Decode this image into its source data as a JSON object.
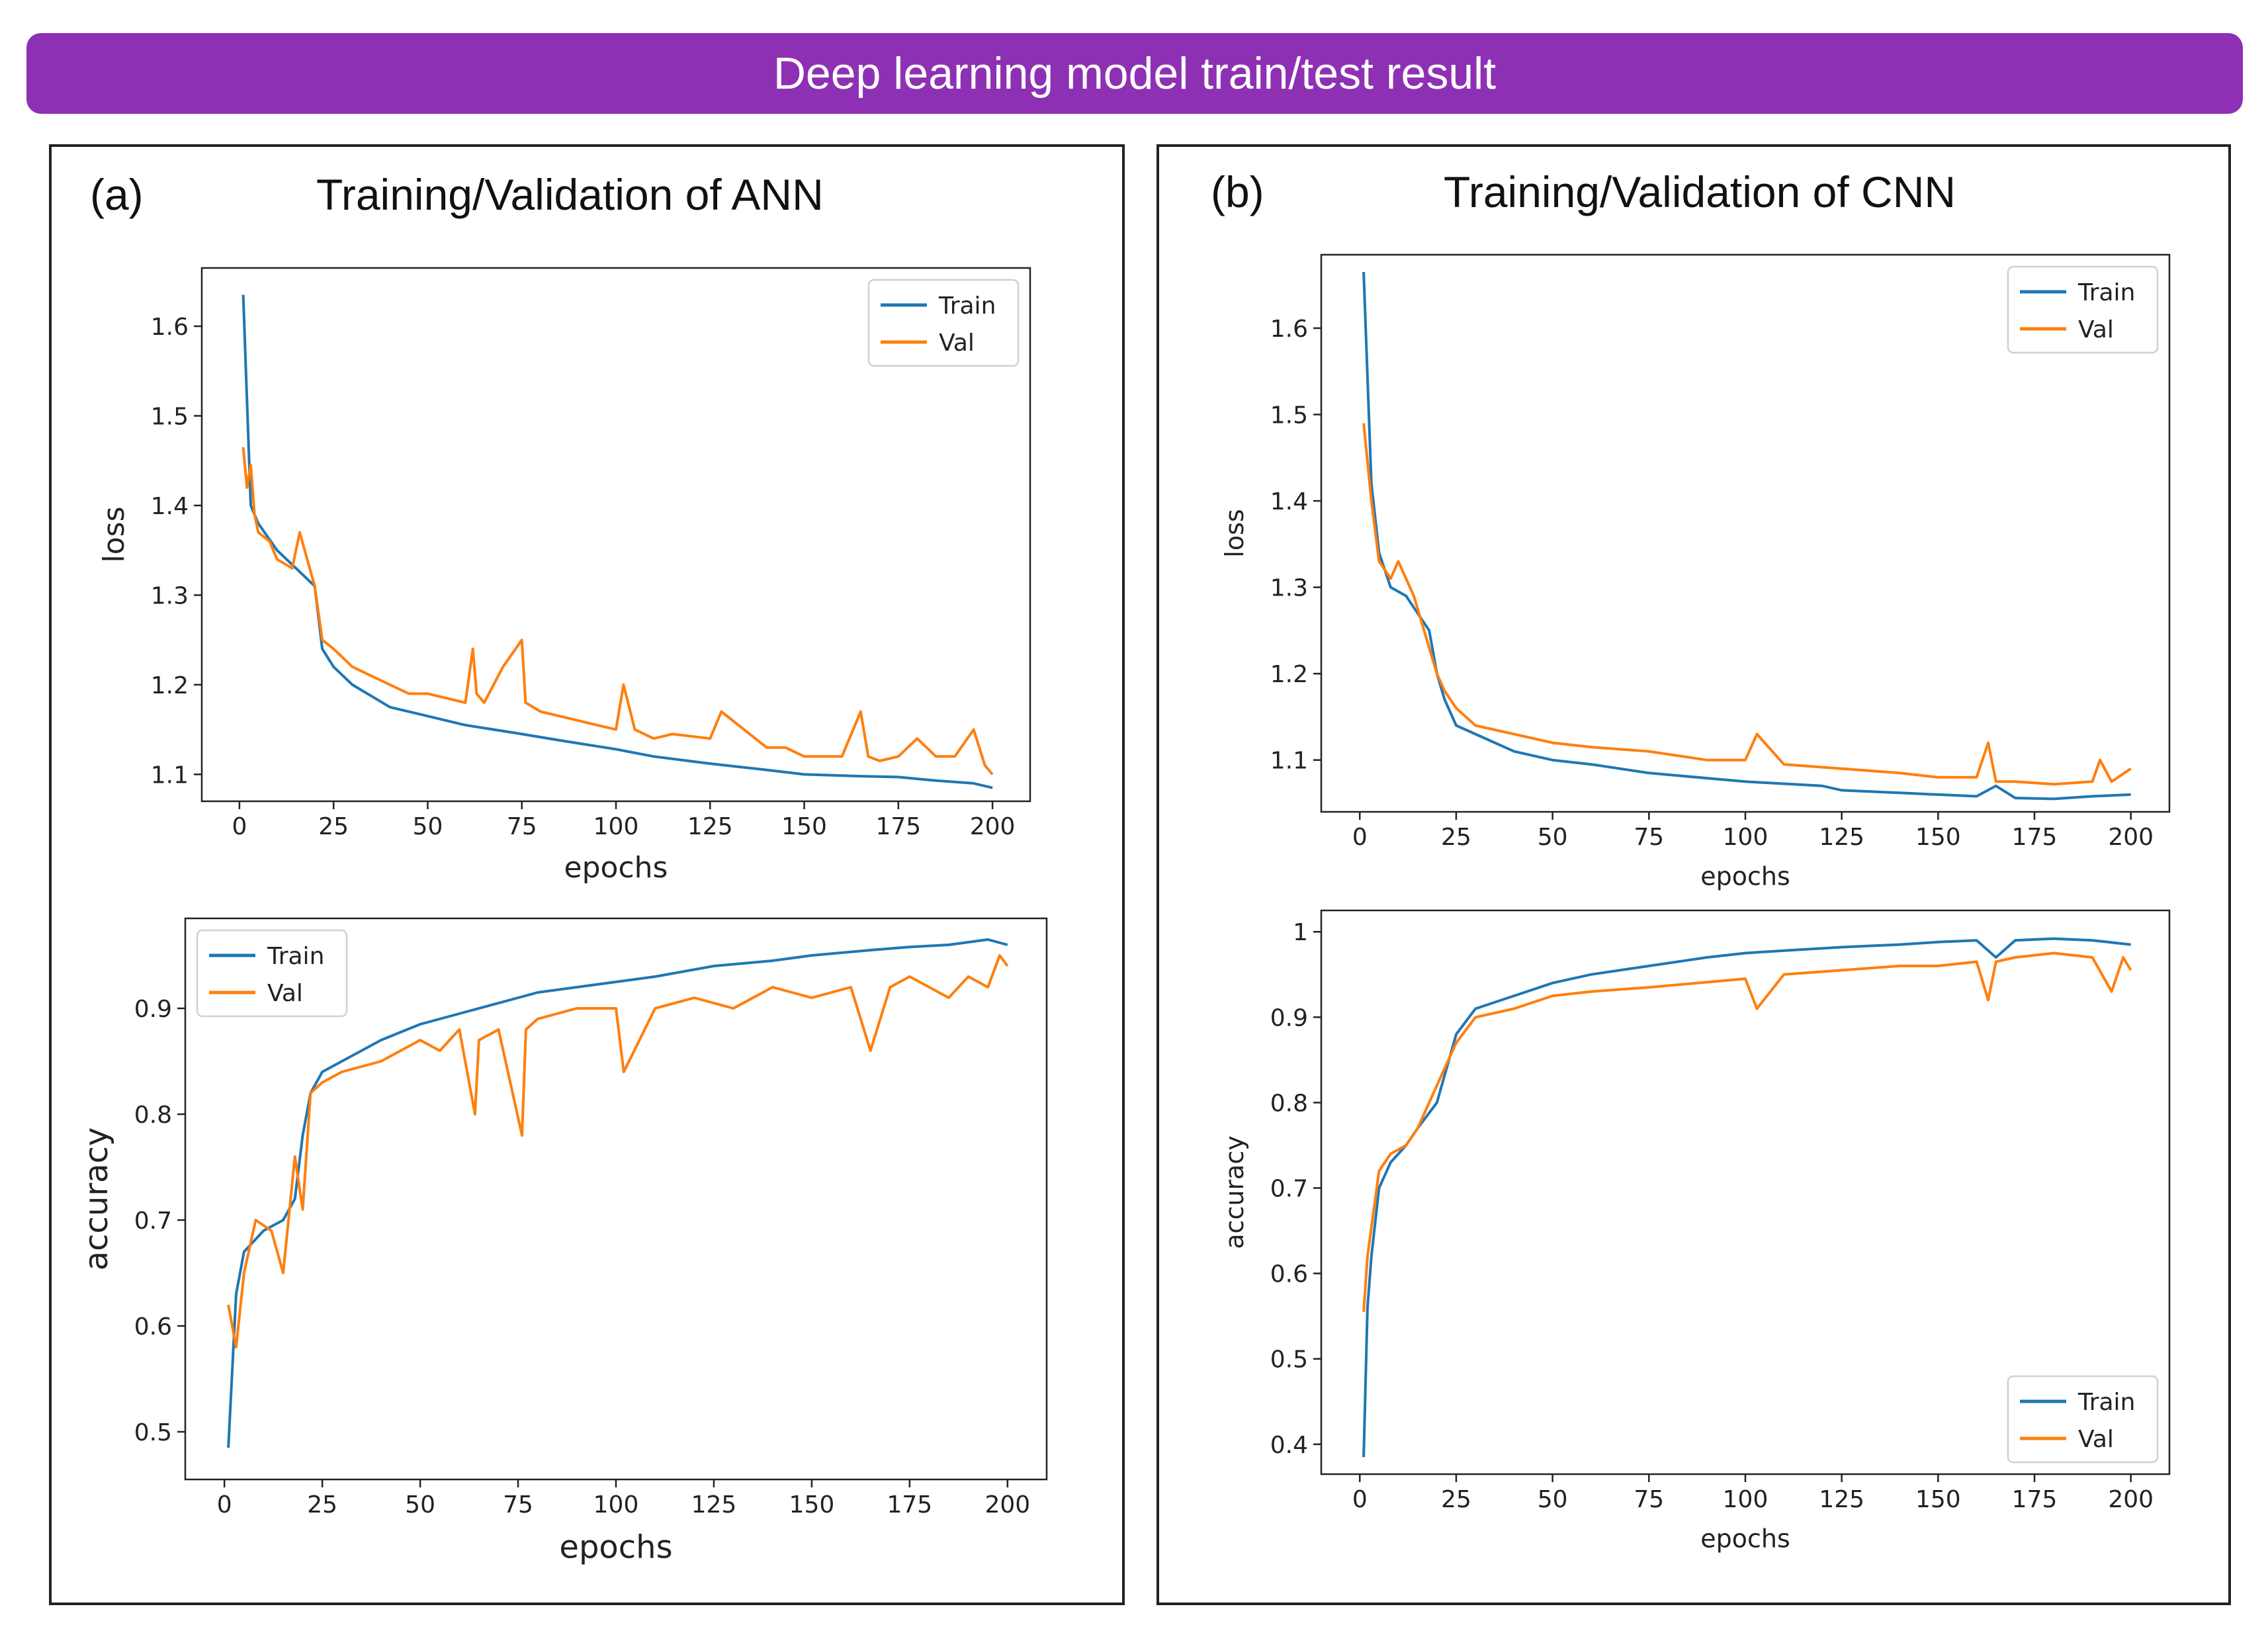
{
  "banner": {
    "title": "Deep learning model train/test result",
    "color": "#8e30b4"
  },
  "colors": {
    "train": "#1f77b4",
    "val": "#ff7f0e"
  },
  "panels": [
    {
      "letter": "(a)",
      "title": "Training/Validation of ANN"
    },
    {
      "letter": "(b)",
      "title": "Training/Validation of CNN"
    }
  ],
  "chart_data": [
    {
      "type": "line",
      "panel": "a",
      "xlabel": "epochs",
      "ylabel": "loss",
      "xlim": [
        -10,
        210
      ],
      "ylim": [
        1.07,
        1.665
      ],
      "xticks": [
        0,
        25,
        50,
        75,
        100,
        125,
        150,
        175,
        200
      ],
      "yticks": [
        1.1,
        1.2,
        1.3,
        1.4,
        1.5,
        1.6
      ],
      "legend": "top-right",
      "grid": false,
      "series": [
        {
          "name": "Train",
          "x": [
            1,
            3,
            5,
            10,
            15,
            20,
            22,
            25,
            30,
            40,
            50,
            60,
            75,
            85,
            100,
            110,
            125,
            140,
            150,
            165,
            175,
            185,
            195,
            200
          ],
          "y": [
            1.635,
            1.4,
            1.38,
            1.35,
            1.33,
            1.31,
            1.24,
            1.22,
            1.2,
            1.175,
            1.165,
            1.155,
            1.145,
            1.138,
            1.128,
            1.12,
            1.112,
            1.105,
            1.1,
            1.098,
            1.097,
            1.093,
            1.09,
            1.085
          ]
        },
        {
          "name": "Val",
          "x": [
            1,
            2,
            3,
            4,
            5,
            8,
            10,
            14,
            16,
            20,
            22,
            25,
            30,
            35,
            40,
            45,
            50,
            55,
            60,
            62,
            63,
            65,
            70,
            75,
            76,
            80,
            90,
            95,
            100,
            102,
            105,
            110,
            115,
            125,
            128,
            140,
            145,
            150,
            160,
            165,
            167,
            170,
            175,
            180,
            185,
            190,
            195,
            198,
            200
          ],
          "y": [
            1.465,
            1.42,
            1.445,
            1.39,
            1.37,
            1.36,
            1.34,
            1.33,
            1.37,
            1.31,
            1.25,
            1.24,
            1.22,
            1.21,
            1.2,
            1.19,
            1.19,
            1.185,
            1.18,
            1.24,
            1.19,
            1.18,
            1.22,
            1.25,
            1.18,
            1.17,
            1.16,
            1.155,
            1.15,
            1.2,
            1.15,
            1.14,
            1.145,
            1.14,
            1.17,
            1.13,
            1.13,
            1.12,
            1.12,
            1.17,
            1.12,
            1.115,
            1.12,
            1.14,
            1.12,
            1.12,
            1.15,
            1.11,
            1.1
          ]
        }
      ]
    },
    {
      "type": "line",
      "panel": "a",
      "xlabel": "epochs",
      "ylabel": "accuracy",
      "xlim": [
        -10,
        210
      ],
      "ylim": [
        0.455,
        0.985
      ],
      "xticks": [
        0,
        25,
        50,
        75,
        100,
        125,
        150,
        175,
        200
      ],
      "yticks": [
        0.5,
        0.6,
        0.7,
        0.8,
        0.9
      ],
      "legend": "top-left",
      "grid": false,
      "series": [
        {
          "name": "Train",
          "x": [
            1,
            3,
            5,
            10,
            15,
            18,
            20,
            22,
            25,
            30,
            40,
            50,
            60,
            75,
            80,
            100,
            110,
            125,
            140,
            150,
            165,
            175,
            185,
            195,
            200
          ],
          "y": [
            0.485,
            0.63,
            0.67,
            0.69,
            0.7,
            0.72,
            0.78,
            0.82,
            0.84,
            0.85,
            0.87,
            0.885,
            0.895,
            0.91,
            0.915,
            0.925,
            0.93,
            0.94,
            0.945,
            0.95,
            0.955,
            0.958,
            0.96,
            0.965,
            0.96
          ]
        },
        {
          "name": "Val",
          "x": [
            1,
            2,
            3,
            5,
            8,
            12,
            15,
            18,
            20,
            22,
            25,
            30,
            40,
            50,
            55,
            60,
            64,
            65,
            70,
            76,
            77,
            80,
            90,
            100,
            102,
            110,
            120,
            130,
            140,
            150,
            160,
            165,
            170,
            175,
            180,
            185,
            190,
            195,
            198,
            200
          ],
          "y": [
            0.62,
            0.6,
            0.58,
            0.65,
            0.7,
            0.69,
            0.65,
            0.76,
            0.71,
            0.82,
            0.83,
            0.84,
            0.85,
            0.87,
            0.86,
            0.88,
            0.8,
            0.87,
            0.88,
            0.78,
            0.88,
            0.89,
            0.9,
            0.9,
            0.84,
            0.9,
            0.91,
            0.9,
            0.92,
            0.91,
            0.92,
            0.86,
            0.92,
            0.93,
            0.92,
            0.91,
            0.93,
            0.92,
            0.95,
            0.94
          ]
        }
      ]
    },
    {
      "type": "line",
      "panel": "b",
      "xlabel": "epochs",
      "ylabel": "loss",
      "xlim": [
        -10,
        210
      ],
      "ylim": [
        1.04,
        1.685
      ],
      "xticks": [
        0,
        25,
        50,
        75,
        100,
        125,
        150,
        175,
        200
      ],
      "yticks": [
        1.1,
        1.2,
        1.3,
        1.4,
        1.5,
        1.6
      ],
      "legend": "top-right",
      "grid": false,
      "series": [
        {
          "name": "Train",
          "x": [
            1,
            3,
            5,
            8,
            12,
            15,
            18,
            20,
            22,
            25,
            30,
            40,
            50,
            60,
            75,
            100,
            120,
            125,
            140,
            150,
            160,
            165,
            170,
            180,
            190,
            200
          ],
          "y": [
            1.665,
            1.42,
            1.34,
            1.3,
            1.29,
            1.27,
            1.25,
            1.2,
            1.17,
            1.14,
            1.13,
            1.11,
            1.1,
            1.095,
            1.085,
            1.075,
            1.07,
            1.065,
            1.062,
            1.06,
            1.058,
            1.07,
            1.056,
            1.055,
            1.058,
            1.06
          ]
        },
        {
          "name": "Val",
          "x": [
            1,
            3,
            5,
            8,
            10,
            14,
            18,
            20,
            22,
            25,
            30,
            40,
            50,
            60,
            75,
            90,
            100,
            103,
            110,
            125,
            140,
            150,
            160,
            163,
            165,
            170,
            180,
            190,
            192,
            195,
            200
          ],
          "y": [
            1.49,
            1.4,
            1.33,
            1.31,
            1.33,
            1.29,
            1.23,
            1.2,
            1.18,
            1.16,
            1.14,
            1.13,
            1.12,
            1.115,
            1.11,
            1.1,
            1.1,
            1.13,
            1.095,
            1.09,
            1.085,
            1.08,
            1.08,
            1.12,
            1.075,
            1.075,
            1.072,
            1.075,
            1.1,
            1.075,
            1.09
          ]
        }
      ]
    },
    {
      "type": "line",
      "panel": "b",
      "xlabel": "epochs",
      "ylabel": "accuracy",
      "xlim": [
        -10,
        210
      ],
      "ylim": [
        0.365,
        1.025
      ],
      "xticks": [
        0,
        25,
        50,
        75,
        100,
        125,
        150,
        175,
        200
      ],
      "yticks": [
        0.4,
        0.5,
        0.6,
        0.7,
        0.8,
        0.9,
        1.0
      ],
      "legend": "bottom-right",
      "grid": false,
      "series": [
        {
          "name": "Train",
          "x": [
            1,
            2,
            3,
            5,
            8,
            12,
            15,
            20,
            25,
            30,
            40,
            50,
            60,
            75,
            90,
            100,
            110,
            125,
            140,
            150,
            160,
            165,
            170,
            180,
            190,
            200
          ],
          "y": [
            0.385,
            0.56,
            0.62,
            0.7,
            0.73,
            0.75,
            0.77,
            0.8,
            0.88,
            0.91,
            0.925,
            0.94,
            0.95,
            0.96,
            0.97,
            0.975,
            0.978,
            0.982,
            0.985,
            0.988,
            0.99,
            0.97,
            0.99,
            0.992,
            0.99,
            0.985
          ]
        },
        {
          "name": "Val",
          "x": [
            1,
            2,
            5,
            8,
            12,
            15,
            20,
            25,
            30,
            40,
            50,
            60,
            75,
            100,
            103,
            110,
            125,
            140,
            150,
            160,
            163,
            165,
            170,
            180,
            190,
            195,
            198,
            200
          ],
          "y": [
            0.555,
            0.62,
            0.72,
            0.74,
            0.75,
            0.77,
            0.82,
            0.87,
            0.9,
            0.91,
            0.925,
            0.93,
            0.935,
            0.945,
            0.91,
            0.95,
            0.955,
            0.96,
            0.96,
            0.965,
            0.92,
            0.965,
            0.97,
            0.975,
            0.97,
            0.93,
            0.97,
            0.955
          ]
        }
      ]
    }
  ]
}
